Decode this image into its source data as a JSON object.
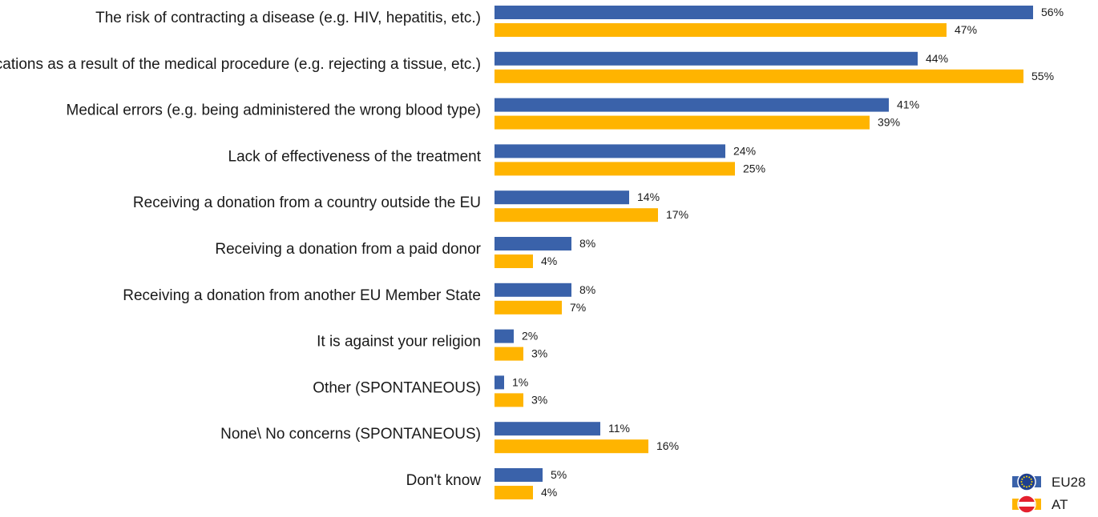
{
  "chart_data": {
    "type": "bar",
    "orientation": "horizontal",
    "categories": [
      "The risk of contracting a disease (e.g. HIV, hepatitis, etc.)",
      "Complications as a result of the medical procedure (e.g. rejecting a tissue, etc.)",
      "Medical errors (e.g. being administered the wrong blood type)",
      "Lack of effectiveness of the treatment",
      "Receiving a donation from a country outside the EU",
      "Receiving a donation from a paid donor",
      "Receiving a donation from another EU Member State",
      "It is against your religion",
      "Other (SPONTANEOUS)",
      "None\\ No concerns (SPONTANEOUS)",
      "Don't know"
    ],
    "series": [
      {
        "name": "EU28",
        "color": "#3a62aa",
        "values": [
          56,
          44,
          41,
          24,
          14,
          8,
          8,
          2,
          1,
          11,
          5
        ]
      },
      {
        "name": "AT",
        "color": "#ffb400",
        "values": [
          47,
          55,
          39,
          25,
          17,
          4,
          7,
          3,
          3,
          16,
          4
        ]
      }
    ],
    "value_suffix": "%",
    "xlim": [
      0,
      56
    ],
    "grid": false,
    "legend_position": "bottom-right",
    "legend_icons": [
      "eu-flag-icon",
      "austria-flag-icon"
    ],
    "colors": {
      "eu_flag_star": "#ffdd00",
      "austria_red": "#e4202e",
      "austria_white": "#ffffff"
    }
  }
}
